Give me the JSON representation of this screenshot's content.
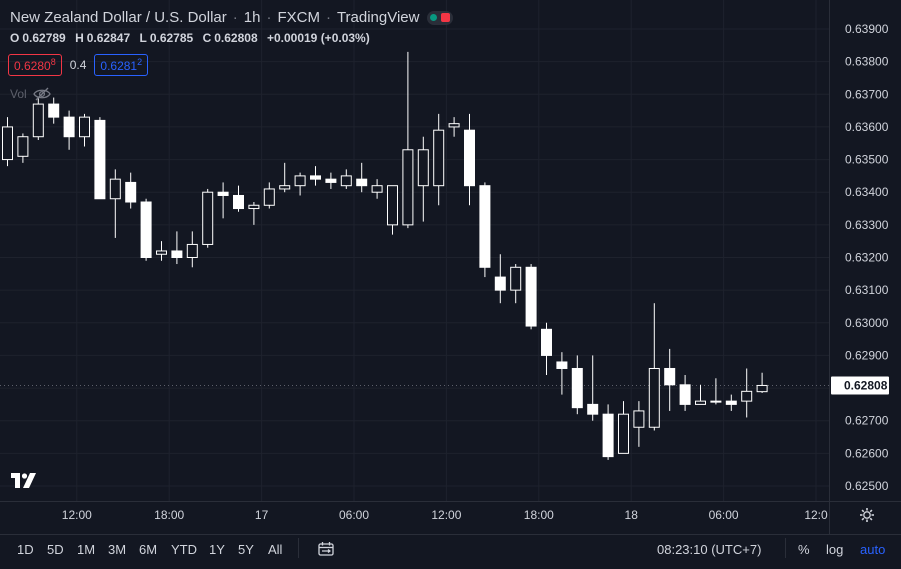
{
  "header": {
    "title": "New Zealand Dollar / U.S. Dollar",
    "interval": "1h",
    "exchange": "FXCM",
    "source": "TradingView"
  },
  "ohlc": {
    "o_label": "O",
    "open": "0.62789",
    "h_label": "H",
    "high": "0.62847",
    "l_label": "L",
    "low": "0.62785",
    "c_label": "C",
    "close": "0.62808",
    "change": "+0.00019 (+0.03%)"
  },
  "quote": {
    "bid_main": "0.6280",
    "bid_sup": "8",
    "spread": "0.4",
    "ask_main": "0.6281",
    "ask_sup": "2"
  },
  "volume_label": "Vol",
  "last_price_label": "0.62808",
  "bottom_bar": {
    "ranges": [
      "1D",
      "5D",
      "1M",
      "3M",
      "6M",
      "YTD",
      "1Y",
      "5Y",
      "All"
    ],
    "clock": "08:23:10 (UTC+7)",
    "percent_label": "%",
    "log_label": "log",
    "auto_label": "auto"
  },
  "colors": {
    "background": "#131722",
    "candle_body": "#ffffff",
    "grid": "#1e222d",
    "text": "#d1d4dc",
    "bid": "#f23645",
    "ask": "#2962ff",
    "auto_active": "#2962ff"
  },
  "icons": [
    "eye-off-icon",
    "tradingview-logo-icon",
    "compare-date-range-icon",
    "settings-gear-icon"
  ],
  "chart_data": {
    "type": "candlestick",
    "symbol": "NZDUSD",
    "timeframe": "1h",
    "y_ticks": [
      "0.63900",
      "0.63800",
      "0.63700",
      "0.63600",
      "0.63500",
      "0.63400",
      "0.63300",
      "0.63200",
      "0.63100",
      "0.63000",
      "0.62900",
      "0.62800",
      "0.62700",
      "0.62600",
      "0.62500"
    ],
    "ylim": [
      0.6246,
      0.6394
    ],
    "x_ticks": [
      {
        "index": 4.5,
        "label": "12:00"
      },
      {
        "index": 10.5,
        "label": "18:00"
      },
      {
        "index": 16.5,
        "label": "17"
      },
      {
        "index": 22.5,
        "label": "06:00"
      },
      {
        "index": 28.5,
        "label": "12:00"
      },
      {
        "index": 34.5,
        "label": "18:00"
      },
      {
        "index": 40.5,
        "label": "18"
      },
      {
        "index": 46.5,
        "label": "06:00"
      },
      {
        "index": 52.5,
        "label": "12:0"
      }
    ],
    "candles": [
      {
        "o": 0.635,
        "h": 0.6363,
        "l": 0.6348,
        "c": 0.636
      },
      {
        "o": 0.6351,
        "h": 0.6358,
        "l": 0.6349,
        "c": 0.6357
      },
      {
        "o": 0.6357,
        "h": 0.6369,
        "l": 0.6356,
        "c": 0.6367
      },
      {
        "o": 0.6367,
        "h": 0.6369,
        "l": 0.6361,
        "c": 0.6363
      },
      {
        "o": 0.6363,
        "h": 0.6365,
        "l": 0.6353,
        "c": 0.6357
      },
      {
        "o": 0.6357,
        "h": 0.6364,
        "l": 0.6354,
        "c": 0.6363
      },
      {
        "o": 0.6362,
        "h": 0.6363,
        "l": 0.6338,
        "c": 0.6338
      },
      {
        "o": 0.6338,
        "h": 0.6347,
        "l": 0.6326,
        "c": 0.6344
      },
      {
        "o": 0.6343,
        "h": 0.6346,
        "l": 0.6335,
        "c": 0.6337
      },
      {
        "o": 0.6337,
        "h": 0.6338,
        "l": 0.6319,
        "c": 0.632
      },
      {
        "o": 0.6321,
        "h": 0.6325,
        "l": 0.6319,
        "c": 0.6322
      },
      {
        "o": 0.6322,
        "h": 0.6328,
        "l": 0.6318,
        "c": 0.632
      },
      {
        "o": 0.632,
        "h": 0.6328,
        "l": 0.6317,
        "c": 0.6324
      },
      {
        "o": 0.6324,
        "h": 0.6341,
        "l": 0.6323,
        "c": 0.634
      },
      {
        "o": 0.634,
        "h": 0.6343,
        "l": 0.6332,
        "c": 0.6339
      },
      {
        "o": 0.6339,
        "h": 0.6342,
        "l": 0.6334,
        "c": 0.6335
      },
      {
        "o": 0.6335,
        "h": 0.6337,
        "l": 0.633,
        "c": 0.6336
      },
      {
        "o": 0.6336,
        "h": 0.6343,
        "l": 0.6335,
        "c": 0.6341
      },
      {
        "o": 0.6341,
        "h": 0.6349,
        "l": 0.634,
        "c": 0.6342
      },
      {
        "o": 0.6342,
        "h": 0.6346,
        "l": 0.6339,
        "c": 0.6345
      },
      {
        "o": 0.6345,
        "h": 0.6348,
        "l": 0.6342,
        "c": 0.6344
      },
      {
        "o": 0.6344,
        "h": 0.6346,
        "l": 0.6341,
        "c": 0.6343
      },
      {
        "o": 0.6342,
        "h": 0.6347,
        "l": 0.6341,
        "c": 0.6345
      },
      {
        "o": 0.6344,
        "h": 0.6349,
        "l": 0.634,
        "c": 0.6342
      },
      {
        "o": 0.634,
        "h": 0.6344,
        "l": 0.6338,
        "c": 0.6342
      },
      {
        "o": 0.633,
        "h": 0.6342,
        "l": 0.6327,
        "c": 0.6342
      },
      {
        "o": 0.633,
        "h": 0.6383,
        "l": 0.6329,
        "c": 0.6353
      },
      {
        "o": 0.6342,
        "h": 0.6357,
        "l": 0.6331,
        "c": 0.6353
      },
      {
        "o": 0.6342,
        "h": 0.6364,
        "l": 0.6336,
        "c": 0.6359
      },
      {
        "o": 0.636,
        "h": 0.6363,
        "l": 0.6357,
        "c": 0.6361
      },
      {
        "o": 0.6359,
        "h": 0.6364,
        "l": 0.6336,
        "c": 0.6342
      },
      {
        "o": 0.6342,
        "h": 0.6343,
        "l": 0.6314,
        "c": 0.6317
      },
      {
        "o": 0.6314,
        "h": 0.6321,
        "l": 0.6306,
        "c": 0.631
      },
      {
        "o": 0.631,
        "h": 0.6318,
        "l": 0.6306,
        "c": 0.6317
      },
      {
        "o": 0.6317,
        "h": 0.6318,
        "l": 0.6298,
        "c": 0.6299
      },
      {
        "o": 0.6298,
        "h": 0.63,
        "l": 0.6284,
        "c": 0.629
      },
      {
        "o": 0.6288,
        "h": 0.6291,
        "l": 0.6278,
        "c": 0.6286
      },
      {
        "o": 0.6286,
        "h": 0.629,
        "l": 0.6272,
        "c": 0.6274
      },
      {
        "o": 0.6275,
        "h": 0.629,
        "l": 0.627,
        "c": 0.6272
      },
      {
        "o": 0.6272,
        "h": 0.6275,
        "l": 0.6258,
        "c": 0.6259
      },
      {
        "o": 0.626,
        "h": 0.6276,
        "l": 0.626,
        "c": 0.6272
      },
      {
        "o": 0.6268,
        "h": 0.6276,
        "l": 0.6262,
        "c": 0.6273
      },
      {
        "o": 0.6268,
        "h": 0.6306,
        "l": 0.6267,
        "c": 0.6286
      },
      {
        "o": 0.6286,
        "h": 0.6292,
        "l": 0.6273,
        "c": 0.6281
      },
      {
        "o": 0.6281,
        "h": 0.6284,
        "l": 0.6273,
        "c": 0.6275
      },
      {
        "o": 0.6275,
        "h": 0.6281,
        "l": 0.6275,
        "c": 0.6276
      },
      {
        "o": 0.6276,
        "h": 0.6283,
        "l": 0.6275,
        "c": 0.6276
      },
      {
        "o": 0.6276,
        "h": 0.6278,
        "l": 0.6273,
        "c": 0.6275
      },
      {
        "o": 0.6276,
        "h": 0.6286,
        "l": 0.6271,
        "c": 0.6279
      },
      {
        "o": 0.62789,
        "h": 0.62847,
        "l": 0.62785,
        "c": 0.62808
      }
    ]
  }
}
